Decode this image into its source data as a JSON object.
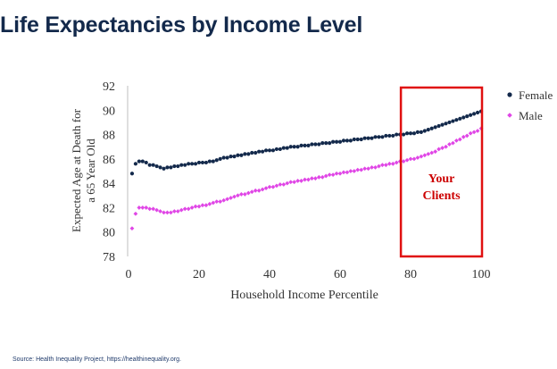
{
  "page": {
    "title": "Life Expectancies by Income Level",
    "source": "Source: Health Inequality Project, https://healthinequality.org."
  },
  "colors": {
    "title": "#13294b",
    "female": "#13294b",
    "male": "#e046e6",
    "highlight_box": "#e01010",
    "highlight_text": "#cc0000"
  },
  "chart_data": {
    "type": "scatter",
    "title": "",
    "xlabel": "Household Income Percentile",
    "ylabel_line1": "Expected Age at Death for",
    "ylabel_line2": "a 65 Year Old",
    "xlim": [
      0,
      100
    ],
    "ylim": [
      78,
      92
    ],
    "xticks": [
      0,
      20,
      40,
      60,
      80,
      100
    ],
    "yticks": [
      78,
      80,
      82,
      84,
      86,
      88,
      90,
      92
    ],
    "grid": false,
    "legend_position": "top-right",
    "highlight": {
      "x_range": [
        78,
        100
      ],
      "label_line1": "Your",
      "label_line2": "Clients"
    },
    "x": [
      1,
      2,
      3,
      4,
      5,
      6,
      7,
      8,
      9,
      10,
      11,
      12,
      13,
      14,
      15,
      16,
      17,
      18,
      19,
      20,
      21,
      22,
      23,
      24,
      25,
      26,
      27,
      28,
      29,
      30,
      31,
      32,
      33,
      34,
      35,
      36,
      37,
      38,
      39,
      40,
      41,
      42,
      43,
      44,
      45,
      46,
      47,
      48,
      49,
      50,
      51,
      52,
      53,
      54,
      55,
      56,
      57,
      58,
      59,
      60,
      61,
      62,
      63,
      64,
      65,
      66,
      67,
      68,
      69,
      70,
      71,
      72,
      73,
      74,
      75,
      76,
      77,
      78,
      79,
      80,
      81,
      82,
      83,
      84,
      85,
      86,
      87,
      88,
      89,
      90,
      91,
      92,
      93,
      94,
      95,
      96,
      97,
      98,
      99,
      100
    ],
    "series": [
      {
        "name": "Female",
        "marker": "circle",
        "values": [
          84.8,
          85.6,
          85.8,
          85.8,
          85.7,
          85.5,
          85.5,
          85.4,
          85.3,
          85.2,
          85.3,
          85.3,
          85.4,
          85.4,
          85.5,
          85.5,
          85.6,
          85.6,
          85.6,
          85.7,
          85.7,
          85.7,
          85.8,
          85.8,
          85.9,
          86.0,
          86.1,
          86.1,
          86.2,
          86.2,
          86.3,
          86.3,
          86.4,
          86.4,
          86.5,
          86.5,
          86.6,
          86.6,
          86.7,
          86.7,
          86.7,
          86.8,
          86.8,
          86.9,
          86.9,
          87.0,
          87.0,
          87.0,
          87.1,
          87.1,
          87.1,
          87.2,
          87.2,
          87.2,
          87.3,
          87.3,
          87.3,
          87.4,
          87.4,
          87.4,
          87.5,
          87.5,
          87.5,
          87.6,
          87.6,
          87.6,
          87.7,
          87.7,
          87.7,
          87.8,
          87.8,
          87.8,
          87.9,
          87.9,
          87.9,
          88.0,
          88.0,
          88.0,
          88.1,
          88.1,
          88.1,
          88.2,
          88.2,
          88.3,
          88.4,
          88.5,
          88.6,
          88.7,
          88.8,
          88.9,
          89.0,
          89.1,
          89.2,
          89.3,
          89.4,
          89.5,
          89.6,
          89.7,
          89.8,
          89.9
        ]
      },
      {
        "name": "Male",
        "marker": "diamond",
        "values": [
          80.3,
          81.5,
          82.0,
          82.0,
          82.0,
          81.9,
          81.9,
          81.8,
          81.7,
          81.6,
          81.6,
          81.6,
          81.7,
          81.7,
          81.8,
          81.9,
          81.9,
          82.0,
          82.1,
          82.1,
          82.2,
          82.2,
          82.3,
          82.4,
          82.5,
          82.5,
          82.6,
          82.7,
          82.8,
          82.9,
          83.0,
          83.1,
          83.1,
          83.2,
          83.3,
          83.4,
          83.4,
          83.5,
          83.6,
          83.7,
          83.7,
          83.8,
          83.9,
          83.9,
          84.0,
          84.1,
          84.1,
          84.2,
          84.2,
          84.3,
          84.3,
          84.4,
          84.4,
          84.5,
          84.5,
          84.6,
          84.7,
          84.7,
          84.8,
          84.8,
          84.9,
          84.9,
          85.0,
          85.0,
          85.1,
          85.1,
          85.2,
          85.2,
          85.3,
          85.3,
          85.4,
          85.5,
          85.5,
          85.6,
          85.6,
          85.7,
          85.8,
          85.8,
          85.9,
          86.0,
          86.0,
          86.1,
          86.2,
          86.3,
          86.4,
          86.5,
          86.6,
          86.8,
          86.9,
          87.0,
          87.2,
          87.3,
          87.5,
          87.6,
          87.8,
          87.9,
          88.1,
          88.2,
          88.3,
          88.5
        ]
      }
    ]
  }
}
